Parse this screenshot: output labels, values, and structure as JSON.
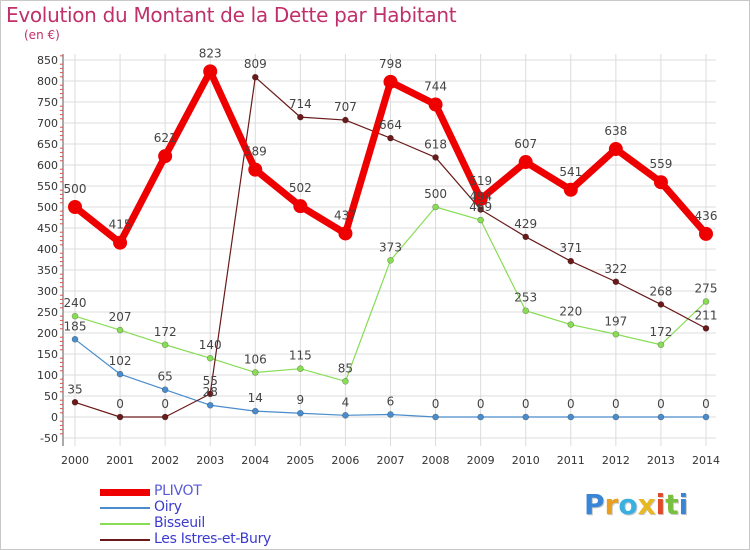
{
  "header": {
    "title": "Evolution du Montant de la Dette par Habitant",
    "subtitle": "(en €)"
  },
  "logo": {
    "letters": [
      "P",
      "r",
      "o",
      "x",
      "i",
      "t",
      "i"
    ],
    "colors": [
      "#3a86d6",
      "#e8a020",
      "#3ab0e0",
      "#e8b820",
      "#e04a2a",
      "#7ac040",
      "#3a86d6"
    ]
  },
  "chart_data": {
    "type": "line",
    "title": "Evolution du Montant de la Dette par Habitant",
    "subtitle": "(en €)",
    "xlabel": "",
    "ylabel": "",
    "x": [
      "2000",
      "2001",
      "2002",
      "2003",
      "2004",
      "2005",
      "2006",
      "2007",
      "2008",
      "2009",
      "2010",
      "2011",
      "2012",
      "2013",
      "2014"
    ],
    "ylim": [
      -50,
      850
    ],
    "yticks": [
      "-50",
      "0",
      "50",
      "100",
      "150",
      "200",
      "250",
      "300",
      "350",
      "400",
      "450",
      "500",
      "550",
      "600",
      "650",
      "700",
      "750",
      "800",
      "850"
    ],
    "grid": true,
    "legend_position": "bottom-left",
    "series": [
      {
        "name": "PLIVOT",
        "color": "#ee0000",
        "values": [
          500,
          415,
          621,
          823,
          589,
          502,
          437,
          798,
          744,
          519,
          607,
          541,
          638,
          559,
          436
        ],
        "labels": [
          "500",
          "415",
          "621",
          "823",
          "589",
          "502",
          "437",
          "798",
          "744",
          "519",
          "607",
          "541",
          "638",
          "559",
          "436"
        ]
      },
      {
        "name": "Oiry",
        "color": "#4a8ccc",
        "values": [
          185,
          102,
          65,
          28,
          14,
          9,
          4,
          6,
          0,
          0,
          0,
          0,
          0,
          0,
          0
        ],
        "labels": [
          "185",
          "102",
          "65",
          "28",
          "14",
          "9",
          "4",
          "6",
          "0",
          "0",
          "0",
          "0",
          "0",
          "0",
          "0"
        ]
      },
      {
        "name": "Bisseuil",
        "color": "#88dd55",
        "values": [
          240,
          207,
          172,
          140,
          106,
          115,
          85,
          373,
          500,
          469,
          253,
          220,
          197,
          172,
          275
        ],
        "labels": [
          "240",
          "207",
          "172",
          "140",
          "106",
          "115",
          "85",
          "373",
          "500",
          "469",
          "253",
          "220",
          "197",
          "172",
          "275"
        ]
      },
      {
        "name": "Les Istres-et-Bury",
        "color": "#6a1a1a",
        "values": [
          35,
          0,
          0,
          55,
          809,
          714,
          707,
          664,
          618,
          494,
          429,
          371,
          322,
          268,
          211
        ],
        "labels": [
          "35",
          "0",
          "0",
          "55",
          "809",
          "714",
          "707",
          "664",
          "618",
          "494",
          "429",
          "371",
          "322",
          "268",
          "211"
        ]
      }
    ]
  }
}
